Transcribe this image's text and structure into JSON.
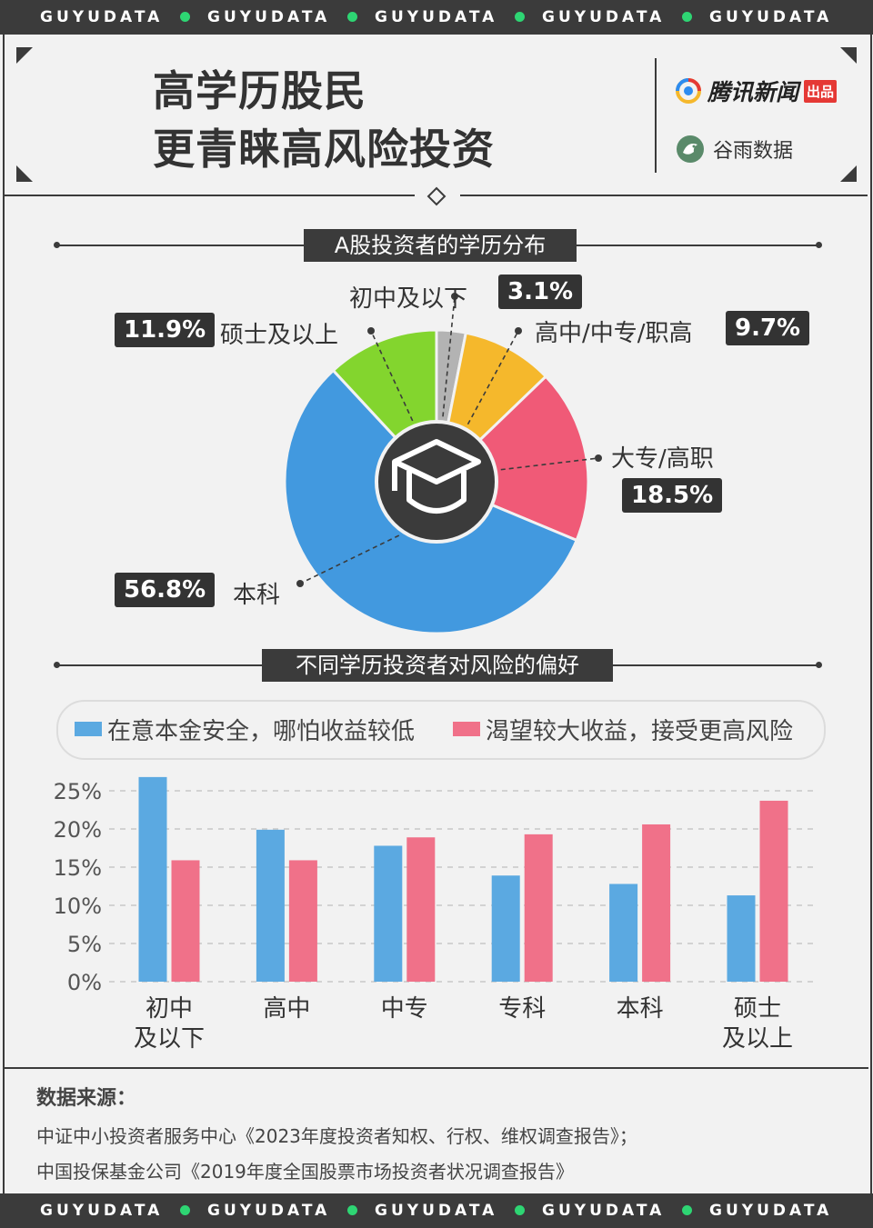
{
  "band": {
    "text": "GUYUDATA"
  },
  "header": {
    "title_line1": "高学历股民",
    "title_line2": "更青睐高风险投资",
    "brand1": "腾讯新闻",
    "brand1_tag": "出品",
    "brand2": "谷雨数据"
  },
  "pie_section": {
    "title": "A股投资者的学历分布"
  },
  "bar_section": {
    "title": "不同学历投资者对风险的偏好"
  },
  "colors": {
    "blue": "#4299df",
    "green": "#83d52e",
    "gray": "#b3b3b3",
    "yellow": "#f5b82c",
    "pink": "#f05a77",
    "bar_blue": "#5ba9e1",
    "bar_pink": "#f07189",
    "dark": "#3b3b3b",
    "accent_dot": "#2ed573"
  },
  "chart_data": [
    {
      "type": "pie",
      "title": "A股投资者的学历分布",
      "slices": [
        {
          "label": "初中及以下",
          "value": 3.1,
          "display": "3.1%",
          "color": "#b3b3b3"
        },
        {
          "label": "高中/中专/职高",
          "value": 9.7,
          "display": "9.7%",
          "color": "#f5b82c"
        },
        {
          "label": "大专/高职",
          "value": 18.5,
          "display": "18.5%",
          "color": "#f05a77"
        },
        {
          "label": "本科",
          "value": 56.8,
          "display": "56.8%",
          "color": "#4299df"
        },
        {
          "label": "硕士及以上",
          "value": 11.9,
          "display": "11.9%",
          "color": "#83d52e"
        }
      ]
    },
    {
      "type": "bar",
      "title": "不同学历投资者对风险的偏好",
      "categories": [
        [
          "初中",
          "及以下"
        ],
        [
          "高中"
        ],
        [
          "中专"
        ],
        [
          "专科"
        ],
        [
          "本科"
        ],
        [
          "硕士",
          "及以上"
        ]
      ],
      "series": [
        {
          "name": "在意本金安全，哪怕收益较低",
          "color": "#5ba9e1",
          "values": [
            26.8,
            19.9,
            17.8,
            13.9,
            12.8,
            11.3
          ]
        },
        {
          "name": "渴望较大收益，接受更高风险",
          "color": "#f07189",
          "values": [
            15.9,
            15.9,
            18.9,
            19.3,
            20.6,
            23.7
          ]
        }
      ],
      "y_ticks": [
        "25%",
        "20%",
        "15%",
        "10%",
        "5%",
        "0%"
      ],
      "ylim": [
        0,
        25
      ],
      "grid": true,
      "legend": "top"
    }
  ],
  "source": {
    "heading": "数据来源：",
    "line1": "中证中小投资者服务中心《2023年度投资者知权、行权、维权调查报告》；",
    "line2": "中国投保基金公司《2019年度全国股票市场投资者状况调查报告》"
  }
}
